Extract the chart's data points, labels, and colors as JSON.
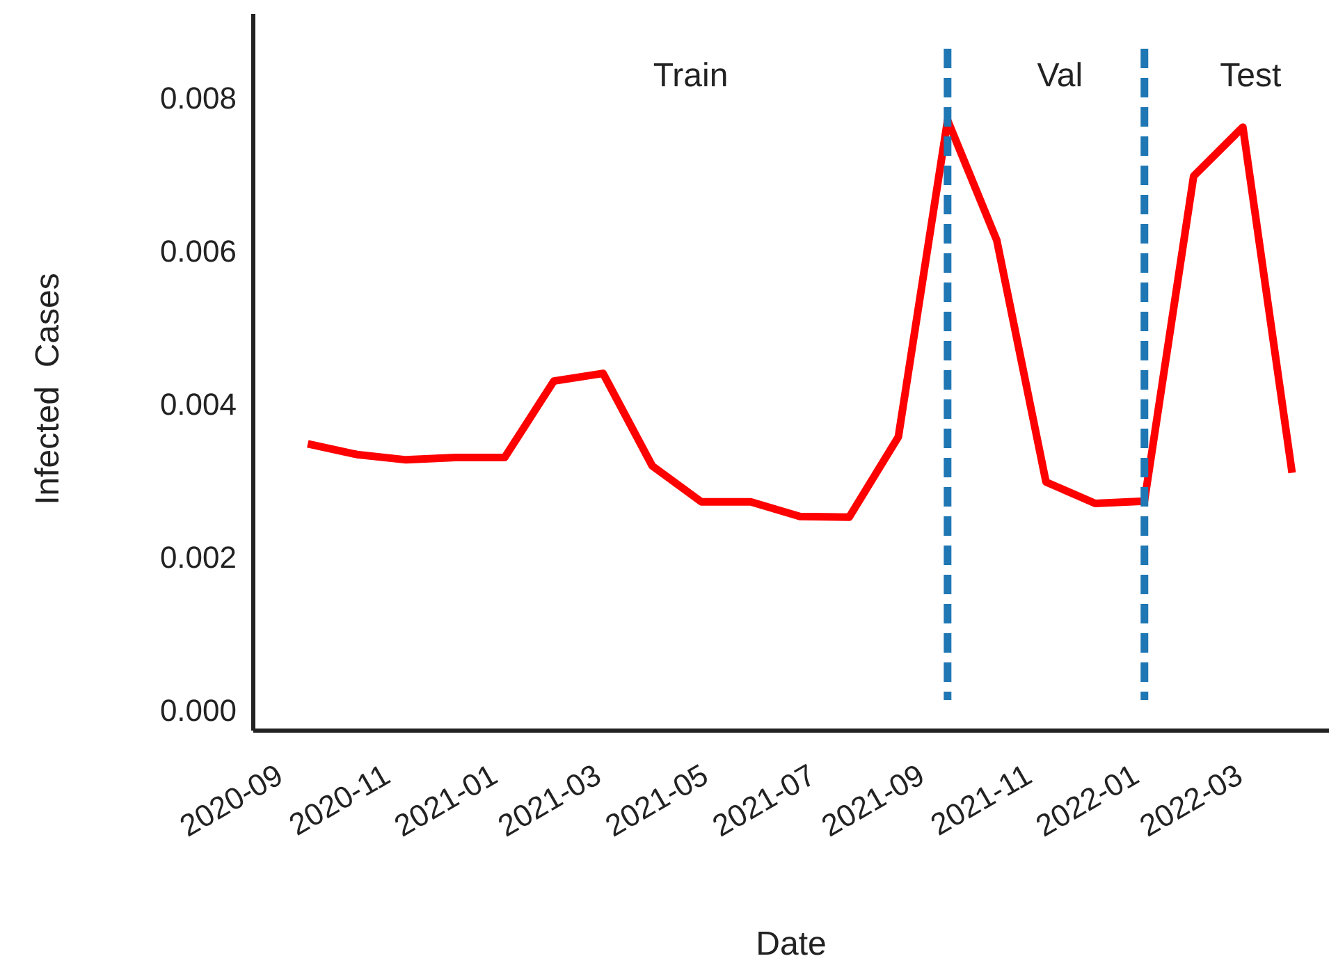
{
  "chart_data": {
    "type": "line",
    "xlabel": "Date",
    "ylabel": "Infected  Cases",
    "x": [
      "2020-09-20",
      "2020-10-18",
      "2020-11-15",
      "2020-12-13",
      "2021-01-10",
      "2021-02-07",
      "2021-03-07",
      "2021-04-04",
      "2021-05-02",
      "2021-05-30",
      "2021-06-27",
      "2021-07-25",
      "2021-08-22",
      "2021-09-19",
      "2021-10-17",
      "2021-11-14",
      "2021-12-12",
      "2022-01-09",
      "2022-02-06",
      "2022-03-06",
      "2022-04-03"
    ],
    "series": [
      {
        "color": "#ff0000",
        "values": [
          0.00348,
          0.00334,
          0.00327,
          0.0033,
          0.0033,
          0.0043,
          0.0044,
          0.00319,
          0.00272,
          0.00272,
          0.00253,
          0.00252,
          0.00357,
          0.00771,
          0.00614,
          0.00298,
          0.0027,
          0.00273,
          0.00698,
          0.00762,
          0.0031
        ]
      }
    ],
    "xlim": [
      "2020-08-20",
      "2022-04-24"
    ],
    "xticks": [
      {
        "value": "2020-09-01",
        "label": "2020-09"
      },
      {
        "value": "2020-11-01",
        "label": "2020-11"
      },
      {
        "value": "2021-01-01",
        "label": "2021-01"
      },
      {
        "value": "2021-03-01",
        "label": "2021-03"
      },
      {
        "value": "2021-05-01",
        "label": "2021-05"
      },
      {
        "value": "2021-07-01",
        "label": "2021-07"
      },
      {
        "value": "2021-09-01",
        "label": "2021-09"
      },
      {
        "value": "2021-11-01",
        "label": "2021-11"
      },
      {
        "value": "2022-01-01",
        "label": "2022-01"
      },
      {
        "value": "2022-03-01",
        "label": "2022-03"
      }
    ],
    "ylim": [
      -0.00027,
      0.0091
    ],
    "yticks": [
      {
        "value": 0,
        "label": "0.000"
      },
      {
        "value": 0.002,
        "label": "0.002"
      },
      {
        "value": 0.004,
        "label": "0.004"
      },
      {
        "value": 0.006,
        "label": "0.006"
      },
      {
        "value": 0.008,
        "label": "0.008"
      }
    ],
    "ref_lines": [
      {
        "axis": "x",
        "value": "2021-09-19",
        "color": "#1f77b4",
        "line_style": "dashed"
      },
      {
        "axis": "x",
        "value": "2022-01-09",
        "color": "#1f77b4",
        "line_style": "dashed"
      }
    ],
    "annotations": [
      "Train",
      "Val",
      "Test"
    ],
    "grid": false,
    "marker": "none",
    "line_style": "solid"
  }
}
